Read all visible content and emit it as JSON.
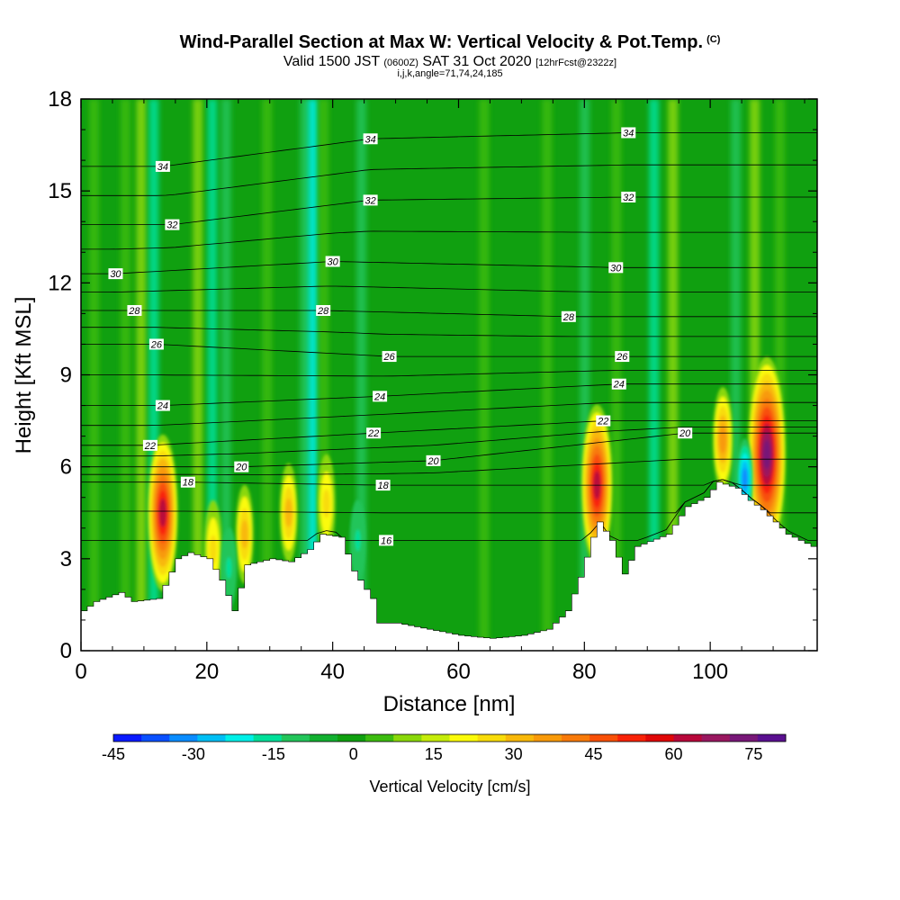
{
  "title": "Wind-Parallel Section at Max W: Vertical Velocity & Pot.Temp.",
  "title_unit": "(C)",
  "subtitle_pre": "Valid 1500 JST",
  "subtitle_z": "(0600Z)",
  "subtitle_date": "SAT 31 Oct 2020",
  "subtitle_fcst": "[12hrFcst@2322z]",
  "subtitle2": "i,j,k,angle=71,74,24,185",
  "chart_data": {
    "type": "heatmap",
    "xlabel": "Distance [nm]",
    "ylabel": "Height [Kft MSL]",
    "xlim": [
      0,
      117
    ],
    "ylim": [
      0,
      18
    ],
    "x_ticks": [
      "0",
      "20",
      "40",
      "60",
      "80",
      "100"
    ],
    "y_ticks": [
      "0",
      "3",
      "6",
      "9",
      "12",
      "15",
      "18"
    ],
    "colorbar": {
      "label": "Vertical Velocity [cm/s]",
      "range": [
        -45,
        81
      ],
      "tick_labels": [
        "-45",
        "-30",
        "-15",
        "0",
        "15",
        "30",
        "45",
        "60",
        "75"
      ],
      "colors": [
        "#0a1aff",
        "#0a50ff",
        "#0a8cff",
        "#00bff5",
        "#00f0e8",
        "#00e09a",
        "#22c55a",
        "#12b030",
        "#10a010",
        "#3cbc10",
        "#8ad80a",
        "#c5ec0a",
        "#fbfb0a",
        "#f8dc0a",
        "#f8b80a",
        "#f89a0a",
        "#f87a0a",
        "#f85008",
        "#f82208",
        "#e00808",
        "#b8083a",
        "#9a1860",
        "#781878",
        "#5a1090"
      ]
    },
    "terrain_top_kft": [
      [
        0,
        1.3
      ],
      [
        2,
        1.6
      ],
      [
        6,
        1.9
      ],
      [
        8,
        1.6
      ],
      [
        12,
        1.7
      ],
      [
        15,
        3.0
      ],
      [
        17,
        3.2
      ],
      [
        20,
        3.0
      ],
      [
        22,
        2.3
      ],
      [
        24,
        1.3
      ],
      [
        26,
        2.8
      ],
      [
        28,
        2.9
      ],
      [
        30,
        3.0
      ],
      [
        33,
        2.9
      ],
      [
        36,
        3.3
      ],
      [
        38,
        3.8
      ],
      [
        41,
        3.7
      ],
      [
        43,
        2.6
      ],
      [
        46,
        1.7
      ],
      [
        47,
        0.9
      ],
      [
        50,
        0.9
      ],
      [
        55,
        0.7
      ],
      [
        60,
        0.5
      ],
      [
        65,
        0.4
      ],
      [
        70,
        0.5
      ],
      [
        74,
        0.7
      ],
      [
        77,
        1.3
      ],
      [
        79,
        2.4
      ],
      [
        81,
        3.7
      ],
      [
        82,
        4.2
      ],
      [
        84,
        3.6
      ],
      [
        86,
        2.5
      ],
      [
        88,
        3.4
      ],
      [
        93,
        3.8
      ],
      [
        96,
        4.7
      ],
      [
        99,
        5.0
      ],
      [
        101,
        5.5
      ],
      [
        104,
        5.3
      ],
      [
        106,
        4.9
      ],
      [
        108,
        4.6
      ],
      [
        110,
        4.2
      ],
      [
        112,
        3.8
      ],
      [
        114,
        3.6
      ],
      [
        117,
        3.3
      ]
    ],
    "updraft_cores": [
      {
        "x": 13,
        "peak_kft": 4.5,
        "max_cms": 60
      },
      {
        "x": 21,
        "peak_kft": 3.3,
        "max_cms": 25
      },
      {
        "x": 26,
        "peak_kft": 3.8,
        "max_cms": 30
      },
      {
        "x": 33,
        "peak_kft": 4.5,
        "max_cms": 30
      },
      {
        "x": 39,
        "peak_kft": 4.8,
        "max_cms": 28
      },
      {
        "x": 82,
        "peak_kft": 5.4,
        "max_cms": 62
      },
      {
        "x": 102,
        "peak_kft": 6.9,
        "max_cms": 40
      },
      {
        "x": 109,
        "peak_kft": 6.4,
        "max_cms": 75
      }
    ],
    "downdraft_cores": [
      {
        "x": 23.5,
        "peak_kft": 2.7,
        "min_cms": -20
      },
      {
        "x": 44,
        "peak_kft": 3.6,
        "min_cms": -18
      },
      {
        "x": 105.5,
        "peak_kft": 5.6,
        "min_cms": -35
      }
    ],
    "pot_temp_contours": {
      "label": "Potential temperature (C)",
      "levels": [
        16,
        18,
        20,
        22,
        24,
        26,
        28,
        30,
        32,
        34
      ],
      "contour_labels": [
        {
          "text": "34",
          "x": 13,
          "y": 15.8
        },
        {
          "text": "34",
          "x": 46,
          "y": 16.7
        },
        {
          "text": "34",
          "x": 87,
          "y": 16.9
        },
        {
          "text": "32",
          "x": 14.5,
          "y": 13.9
        },
        {
          "text": "32",
          "x": 46,
          "y": 14.7
        },
        {
          "text": "32",
          "x": 87,
          "y": 14.8
        },
        {
          "text": "30",
          "x": 5.5,
          "y": 12.3
        },
        {
          "text": "30",
          "x": 40,
          "y": 12.7
        },
        {
          "text": "30",
          "x": 85,
          "y": 12.5
        },
        {
          "text": "28",
          "x": 8.5,
          "y": 11.1
        },
        {
          "text": "28",
          "x": 38.5,
          "y": 11.1
        },
        {
          "text": "28",
          "x": 77.5,
          "y": 10.9
        },
        {
          "text": "26",
          "x": 12,
          "y": 10.0
        },
        {
          "text": "26",
          "x": 49,
          "y": 9.6
        },
        {
          "text": "26",
          "x": 86,
          "y": 9.6
        },
        {
          "text": "24",
          "x": 13,
          "y": 8.0
        },
        {
          "text": "24",
          "x": 47.5,
          "y": 8.3
        },
        {
          "text": "24",
          "x": 85.5,
          "y": 8.7
        },
        {
          "text": "22",
          "x": 11,
          "y": 6.7
        },
        {
          "text": "22",
          "x": 46.5,
          "y": 7.1
        },
        {
          "text": "22",
          "x": 83,
          "y": 7.5
        },
        {
          "text": "20",
          "x": 25.5,
          "y": 6.0
        },
        {
          "text": "20",
          "x": 56,
          "y": 6.2
        },
        {
          "text": "20",
          "x": 96,
          "y": 7.1
        },
        {
          "text": "18",
          "x": 17,
          "y": 5.5
        },
        {
          "text": "18",
          "x": 48,
          "y": 5.4
        },
        {
          "text": "16",
          "x": 48.5,
          "y": 3.6
        }
      ]
    }
  }
}
